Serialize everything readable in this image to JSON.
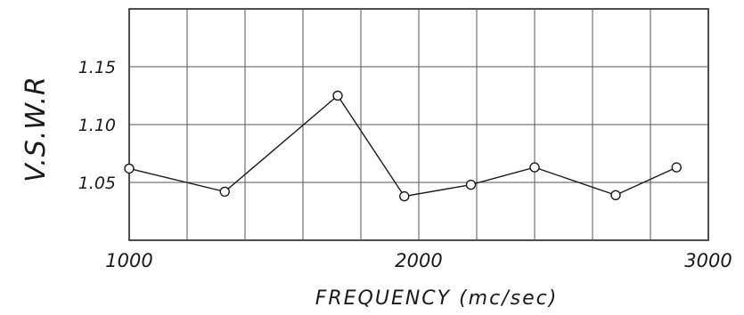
{
  "chart_data": {
    "type": "line",
    "xlabel": "FREQUENCY  (mc/sec)",
    "ylabel": "V.S.W.R",
    "xlim": [
      1000,
      3000
    ],
    "ylim": [
      1.0,
      1.2
    ],
    "x_ticks": [
      "1000",
      "2000",
      "3000"
    ],
    "y_ticks": [
      "1.05",
      "1.10",
      "1.15"
    ],
    "grid": true,
    "series": [
      {
        "x": [
          1000,
          1330,
          1720,
          1950,
          2180,
          2400,
          2680,
          2890
        ],
        "y": [
          1.062,
          1.042,
          1.125,
          1.038,
          1.048,
          1.063,
          1.039,
          1.063
        ]
      }
    ]
  }
}
